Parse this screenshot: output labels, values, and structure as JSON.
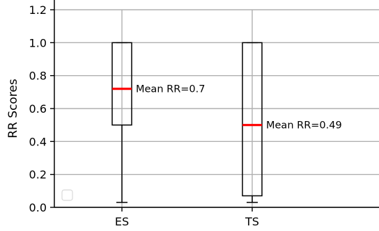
{
  "chart_data": {
    "type": "box",
    "title": "",
    "xlabel": "",
    "ylabel": "RR Scores",
    "ylim": [
      0.0,
      1.2
    ],
    "yticks": [
      "0.0",
      "0.2",
      "0.4",
      "0.6",
      "0.8",
      "1.0",
      "1.2"
    ],
    "grid": true,
    "legend": "bottom-left, empty",
    "categories": [
      "ES",
      "TS"
    ],
    "boxes": [
      {
        "category": "ES",
        "whisker_low": 0.03,
        "q1": 0.5,
        "median": 0.72,
        "q3": 1.0,
        "whisker_high": 1.0,
        "annotation": "Mean RR=0.7"
      },
      {
        "category": "TS",
        "whisker_low": 0.03,
        "q1": 0.07,
        "median": 0.5,
        "q3": 1.0,
        "whisker_high": 1.0,
        "annotation": "Mean RR=0.49"
      }
    ],
    "colors": {
      "box": "#000000",
      "median": "#ff0000",
      "grid": "#b0b0b0"
    }
  }
}
